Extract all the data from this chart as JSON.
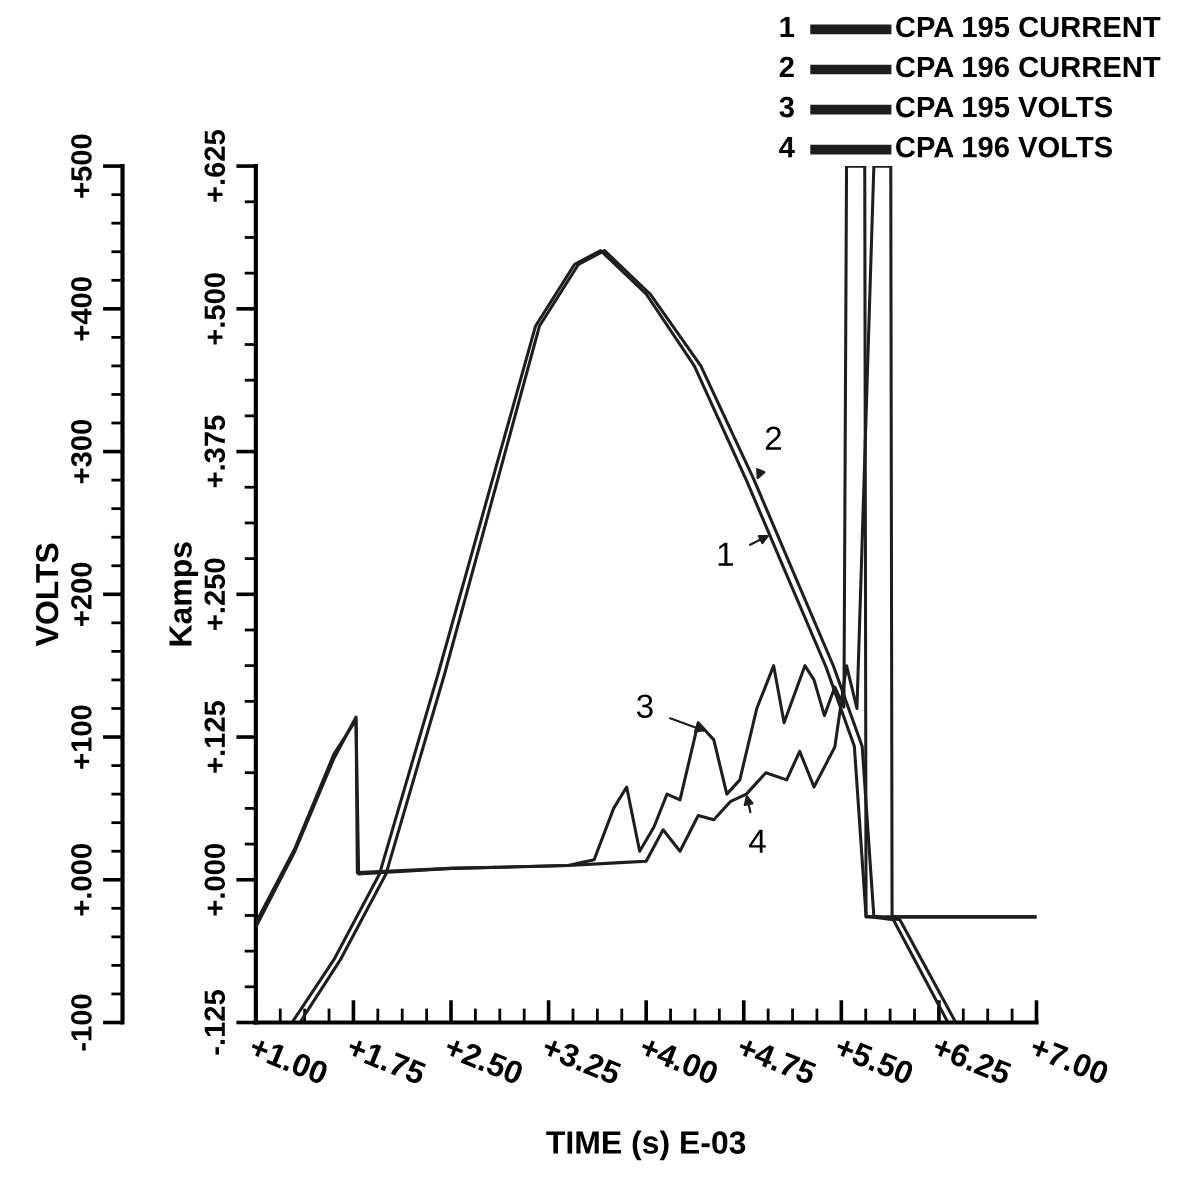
{
  "chart_data": {
    "type": "line",
    "xlabel": "TIME (s) E-03",
    "ylabel": "Kamps",
    "y2label": "VOLTS",
    "xlim": [
      1.0,
      7.0
    ],
    "xticks": [
      {
        "value": 1.0,
        "label": "+1.00"
      },
      {
        "value": 1.75,
        "label": "+1.75"
      },
      {
        "value": 2.5,
        "label": "+2.50"
      },
      {
        "value": 3.25,
        "label": "+3.25"
      },
      {
        "value": 4.0,
        "label": "+4.00"
      },
      {
        "value": 4.75,
        "label": "+4.75"
      },
      {
        "value": 5.5,
        "label": "+5.50"
      },
      {
        "value": 6.25,
        "label": "+6.25"
      },
      {
        "value": 7.0,
        "label": "+7.00"
      }
    ],
    "ylim": [
      -0.125,
      0.625
    ],
    "yticks": [
      {
        "value": -0.125,
        "label": "-.125"
      },
      {
        "value": 0,
        "label": "+.000"
      },
      {
        "value": 0.125,
        "label": "+.125"
      },
      {
        "value": 0.25,
        "label": "+.250"
      },
      {
        "value": 0.375,
        "label": "+.375"
      },
      {
        "value": 0.5,
        "label": "+.500"
      },
      {
        "value": 0.625,
        "label": "+.625"
      }
    ],
    "y2lim": [
      -100,
      500
    ],
    "y2ticks": [
      {
        "value": -100,
        "label": "-100"
      },
      {
        "value": 0,
        "label": "+.000"
      },
      {
        "value": 100,
        "label": "+100"
      },
      {
        "value": 200,
        "label": "+200"
      },
      {
        "value": 300,
        "label": "+300"
      },
      {
        "value": 400,
        "label": "+400"
      },
      {
        "value": 500,
        "label": "+500"
      }
    ],
    "grid": false,
    "legend": "top right",
    "marker": "none",
    "line_style": "solid",
    "series": [
      {
        "name": "CPA 195 CURRENT",
        "color": "#1e1e1e",
        "x": [
          1.29,
          1.6,
          1.95,
          2.4,
          2.83,
          3.15,
          3.45,
          3.65,
          4.0,
          4.37,
          4.77,
          5.08,
          5.38,
          5.6,
          5.69,
          5.9,
          6.31
        ],
        "values": [
          -0.123,
          -0.07,
          0.005,
          0.18,
          0.355,
          0.485,
          0.539,
          0.551,
          0.513,
          0.45,
          0.35,
          0.267,
          0.187,
          0.117,
          -0.032,
          -0.035,
          -0.123
        ]
      },
      {
        "name": "CPA 196 CURRENT",
        "color": "#1e1e1e",
        "x": [
          1.35,
          1.65,
          2.0,
          2.45,
          2.87,
          3.18,
          3.48,
          3.68,
          4.03,
          4.42,
          4.83,
          5.14,
          5.44,
          5.66,
          5.75,
          5.95,
          6.37
        ],
        "values": [
          -0.123,
          -0.07,
          0.005,
          0.18,
          0.355,
          0.485,
          0.539,
          0.551,
          0.513,
          0.45,
          0.35,
          0.267,
          0.187,
          0.117,
          -0.032,
          -0.035,
          -0.123
        ]
      },
      {
        "name": "CPA 195 VOLTS",
        "color": "#1e1e1e",
        "axis": "y2",
        "x": [
          1.0,
          1.3,
          1.6,
          1.77,
          1.78,
          2.5,
          3.4,
          3.6,
          3.75,
          3.85,
          3.95,
          4.06,
          4.16,
          4.26,
          4.4,
          4.52,
          4.62,
          4.72,
          4.85,
          4.98,
          5.06,
          5.14,
          5.22,
          5.29,
          5.37,
          5.45,
          5.52,
          5.54,
          5.68,
          5.69,
          7.0
        ],
        "values": [
          -33,
          20,
          85,
          114,
          5,
          8,
          10,
          14,
          50,
          65,
          20,
          37,
          60,
          56,
          110,
          98,
          60,
          70,
          120,
          150,
          110,
          130,
          150,
          140,
          115,
          135,
          121,
          500,
          500,
          -26,
          -26
        ]
      },
      {
        "name": "CPA 196 VOLTS",
        "color": "#1e1e1e",
        "axis": "y2",
        "x": [
          1.0,
          1.3,
          1.6,
          1.77,
          1.79,
          2.5,
          3.4,
          3.8,
          4.0,
          4.13,
          4.26,
          4.4,
          4.52,
          4.65,
          4.77,
          4.92,
          5.08,
          5.18,
          5.29,
          5.45,
          5.54,
          5.62,
          5.75,
          5.88,
          5.89,
          7.0
        ],
        "values": [
          -30,
          22,
          88,
          112,
          4,
          8,
          10,
          12,
          13,
          35,
          20,
          45,
          42,
          55,
          60,
          75,
          70,
          90,
          65,
          93,
          150,
          120,
          500,
          500,
          -26,
          -26
        ]
      }
    ],
    "annotations": [
      {
        "text": "1",
        "x": 4.95,
        "y": 0.302
      },
      {
        "text": "2",
        "x": 4.85,
        "y": 0.35
      },
      {
        "text": "3",
        "x": 4.46,
        "y": 0.13
      },
      {
        "text": "4",
        "x": 4.77,
        "y": 0.075
      }
    ]
  }
}
